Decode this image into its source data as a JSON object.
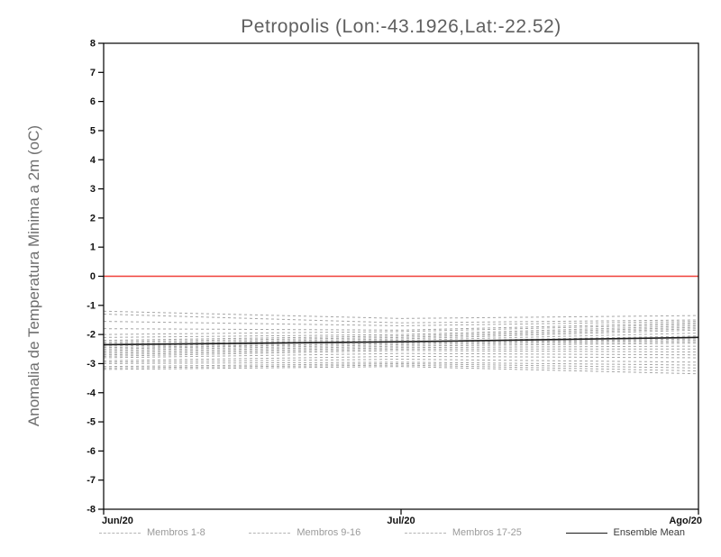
{
  "title": "Petropolis (Lon:-43.1926,Lat:-22.52)",
  "ylabel": "Anomalia de Temperatura Minima a 2m (oC)",
  "legend": [
    {
      "label": "Membros 1-8",
      "style": "dashed",
      "color": "#b5b5b5"
    },
    {
      "label": "Membros 9-16",
      "style": "dashed",
      "color": "#b5b5b5"
    },
    {
      "label": "Membros 17-25",
      "style": "dashed",
      "color": "#b5b5b5"
    },
    {
      "label": "Ensemble Mean",
      "style": "solid",
      "color": "#1a1a1a"
    }
  ],
  "colors": {
    "zero_line": "#f04038",
    "member_line": "#a6a6a6",
    "mean_line": "#1a1a1a",
    "frame": "#000000",
    "tick_label": "#111111"
  },
  "chart_data": {
    "type": "line",
    "title": "Petropolis (Lon:-43.1926,Lat:-22.52)",
    "xlabel": "",
    "ylabel": "Anomalia de Temperatura Minima a 2m (oC)",
    "x_categories": [
      "Jun/20",
      "Jul/20",
      "Ago/20"
    ],
    "ylim": [
      -8,
      8
    ],
    "ytick_step": 1,
    "grid": false,
    "legend_position": "bottom",
    "zero_reference_line": 0,
    "ensemble_mean": [
      -2.35,
      -2.25,
      -2.1
    ],
    "members": [
      [
        -1.2,
        -1.45,
        -1.35
      ],
      [
        -1.3,
        -1.6,
        -1.5
      ],
      [
        -1.55,
        -1.7,
        -1.55
      ],
      [
        -1.8,
        -1.85,
        -1.6
      ],
      [
        -2.0,
        -1.9,
        -1.65
      ],
      [
        -2.1,
        -2.0,
        -1.7
      ],
      [
        -2.2,
        -2.05,
        -1.75
      ],
      [
        -2.25,
        -2.1,
        -1.8
      ],
      [
        -2.3,
        -2.15,
        -1.85
      ],
      [
        -2.35,
        -2.2,
        -1.95
      ],
      [
        -2.4,
        -2.25,
        -2.05
      ],
      [
        -2.45,
        -2.3,
        -2.15
      ],
      [
        -2.5,
        -2.3,
        -2.2
      ],
      [
        -2.55,
        -2.35,
        -2.25
      ],
      [
        -2.6,
        -2.4,
        -2.3
      ],
      [
        -2.65,
        -2.45,
        -2.4
      ],
      [
        -2.7,
        -2.5,
        -2.5
      ],
      [
        -2.75,
        -2.55,
        -2.6
      ],
      [
        -2.8,
        -2.65,
        -2.7
      ],
      [
        -2.9,
        -2.75,
        -2.8
      ],
      [
        -2.95,
        -2.85,
        -2.95
      ],
      [
        -3.0,
        -2.95,
        -3.05
      ],
      [
        -3.1,
        -3.0,
        -3.15
      ],
      [
        -3.15,
        -3.05,
        -3.25
      ],
      [
        -3.2,
        -3.1,
        -3.35
      ]
    ]
  }
}
